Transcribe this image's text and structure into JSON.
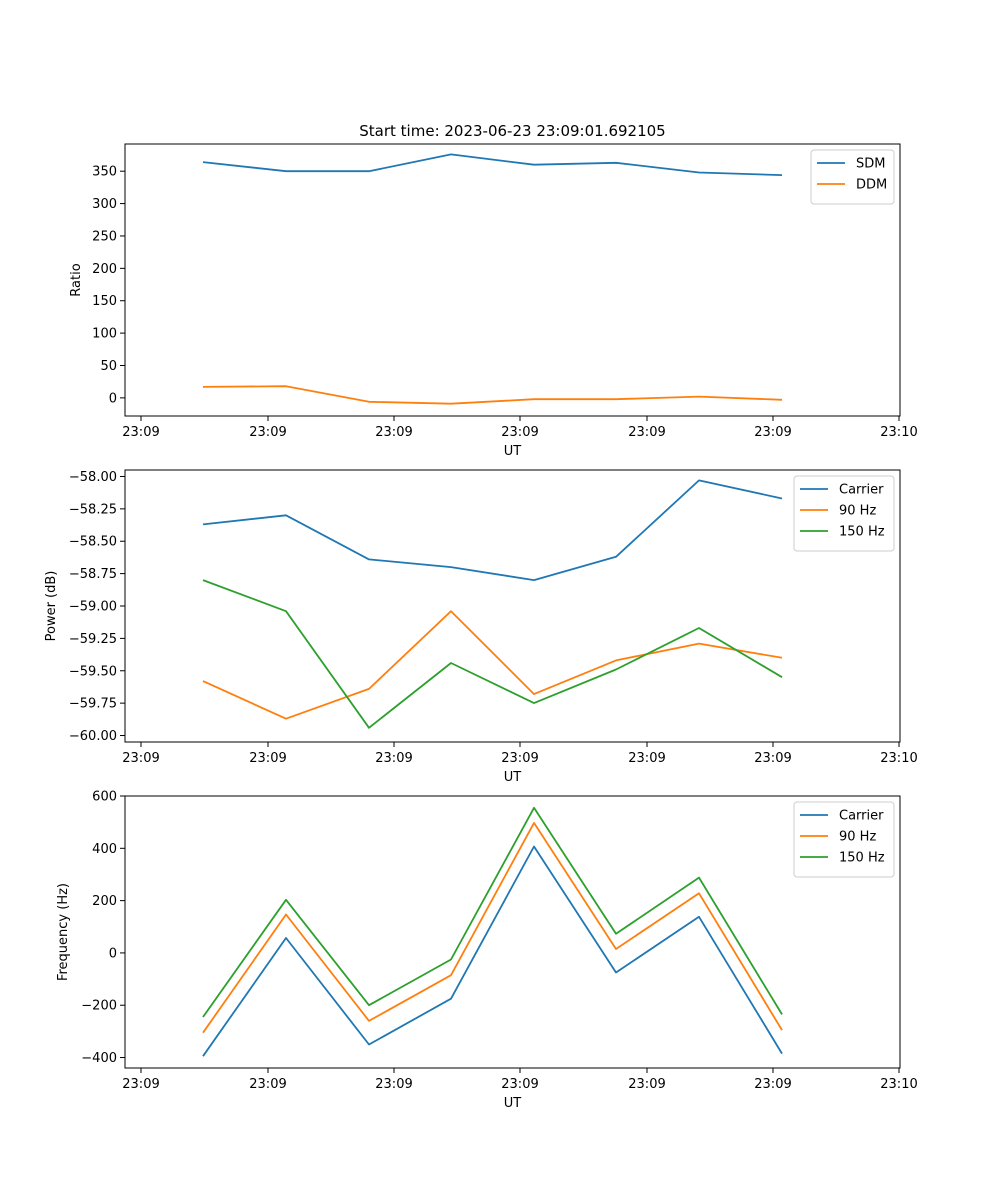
{
  "chart_data": [
    {
      "type": "line",
      "title": "Start time: 2023-06-23 23:09:01.692105",
      "xlabel": "UT",
      "ylabel": "Ratio",
      "x_tick_labels": [
        "23:09",
        "23:09",
        "23:09",
        "23:09",
        "23:09",
        "23:09",
        "23:10"
      ],
      "y_ticks": [
        0,
        50,
        100,
        150,
        200,
        250,
        300,
        350
      ],
      "ylim": [
        -28,
        392
      ],
      "legend_position": "top-right",
      "grid": false,
      "series": [
        {
          "name": "SDM",
          "color": "#1f77b4",
          "values": [
            364,
            350,
            350,
            376,
            360,
            363,
            348,
            344
          ]
        },
        {
          "name": "DDM",
          "color": "#ff7f0e",
          "values": [
            17,
            18,
            -6,
            -9,
            -2,
            -2,
            2,
            -3
          ]
        }
      ]
    },
    {
      "type": "line",
      "title": "",
      "xlabel": "UT",
      "ylabel": "Power (dB)",
      "x_tick_labels": [
        "23:09",
        "23:09",
        "23:09",
        "23:09",
        "23:09",
        "23:09",
        "23:10"
      ],
      "y_ticks": [
        -60.0,
        -59.75,
        -59.5,
        -59.25,
        -59.0,
        -58.75,
        -58.5,
        -58.25,
        -58.0
      ],
      "y_tick_labels": [
        "−60.00",
        "−59.75",
        "−59.50",
        "−59.25",
        "−59.00",
        "−58.75",
        "−58.50",
        "−58.25",
        "−58.00"
      ],
      "ylim": [
        -60.05,
        -57.95
      ],
      "legend_position": "top-right",
      "grid": false,
      "series": [
        {
          "name": "Carrier",
          "color": "#1f77b4",
          "values": [
            -58.37,
            -58.3,
            -58.64,
            -58.7,
            -58.8,
            -58.62,
            -58.03,
            -58.17
          ]
        },
        {
          "name": "90 Hz",
          "color": "#ff7f0e",
          "values": [
            -59.58,
            -59.87,
            -59.64,
            -59.04,
            -59.68,
            -59.42,
            -59.29,
            -59.4
          ]
        },
        {
          "name": "150 Hz",
          "color": "#2ca02c",
          "values": [
            -58.8,
            -59.04,
            -59.94,
            -59.44,
            -59.75,
            -59.49,
            -59.17,
            -59.55
          ]
        }
      ]
    },
    {
      "type": "line",
      "title": "",
      "xlabel": "UT",
      "ylabel": "Frequency (Hz)",
      "x_tick_labels": [
        "23:09",
        "23:09",
        "23:09",
        "23:09",
        "23:09",
        "23:09",
        "23:10"
      ],
      "y_ticks": [
        -400,
        -200,
        0,
        200,
        400,
        600
      ],
      "y_tick_labels": [
        "−400",
        "−200",
        "0",
        "200",
        "400",
        "600"
      ],
      "ylim": [
        -440,
        600
      ],
      "legend_position": "top-right",
      "grid": false,
      "series": [
        {
          "name": "Carrier",
          "color": "#1f77b4",
          "values": [
            -395,
            57,
            -350,
            -175,
            407,
            -75,
            138,
            -385
          ]
        },
        {
          "name": "90 Hz",
          "color": "#ff7f0e",
          "values": [
            -305,
            147,
            -260,
            -85,
            497,
            15,
            228,
            -295
          ]
        },
        {
          "name": "150 Hz",
          "color": "#2ca02c",
          "values": [
            -245,
            203,
            -200,
            -25,
            555,
            73,
            288,
            -235
          ]
        }
      ]
    }
  ]
}
